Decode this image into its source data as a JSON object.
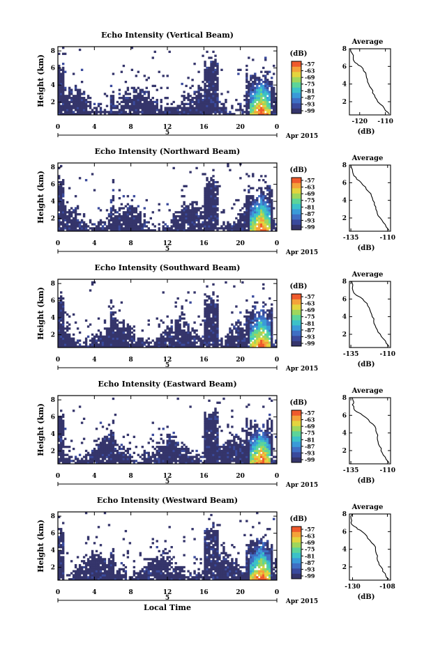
{
  "date_label": "Apr 2015",
  "day_label": "5",
  "xlabel": "Local Time",
  "colorbar": {
    "unit": "(dB)",
    "ticks": [
      "-57",
      "-63",
      "-69",
      "-75",
      "-81",
      "-87",
      "-93",
      "-99"
    ],
    "colors": [
      "#35356b",
      "#3a4a9c",
      "#3f6fc4",
      "#3a9ad8",
      "#3cc1c8",
      "#5cd49a",
      "#9fd65c",
      "#e3d43e",
      "#f4a23a",
      "#ef5a2c"
    ]
  },
  "chart_data": [
    {
      "type": "heatmap",
      "title": "Echo Intensity (Vertical Beam)",
      "ylabel": "Height (km)",
      "x_ticks": [
        "0",
        "4",
        "8",
        "12",
        "16",
        "20",
        "0"
      ],
      "y_ticks": [
        "2",
        "4",
        "6",
        "8"
      ],
      "xlim": [
        0,
        24
      ],
      "ylim": [
        0.5,
        8.5
      ],
      "profile": {
        "title": "Average",
        "xlabel": "(dB)",
        "x_ticks": [
          "-120",
          "-110"
        ],
        "y_ticks": [
          "2",
          "4",
          "6",
          "8"
        ],
        "xlim": [
          -124,
          -108
        ],
        "ylim": [
          0.5,
          8
        ],
        "points": [
          [
            -108.5,
            0.6
          ],
          [
            -110,
            1
          ],
          [
            -111,
            1.5
          ],
          [
            -113,
            2
          ],
          [
            -114,
            2.5
          ],
          [
            -115,
            3
          ],
          [
            -115.5,
            3.5
          ],
          [
            -116.5,
            4
          ],
          [
            -117,
            4.5
          ],
          [
            -117.5,
            5
          ],
          [
            -118.5,
            5.5
          ],
          [
            -119.5,
            6
          ],
          [
            -121,
            6.3
          ],
          [
            -122,
            6.5
          ],
          [
            -122.5,
            7
          ],
          [
            -123,
            7.5
          ],
          [
            -123.5,
            8
          ]
        ]
      }
    },
    {
      "type": "heatmap",
      "title": "Echo Intensity (Northward Beam)",
      "ylabel": "Height (km)",
      "x_ticks": [
        "0",
        "4",
        "8",
        "12",
        "16",
        "20",
        "0"
      ],
      "y_ticks": [
        "2",
        "4",
        "6",
        "8"
      ],
      "xlim": [
        0,
        24
      ],
      "ylim": [
        0.5,
        8.5
      ],
      "profile": {
        "title": "Average",
        "xlabel": "(dB)",
        "x_ticks": [
          "-135",
          "-110"
        ],
        "y_ticks": [
          "2",
          "4",
          "6",
          "8"
        ],
        "xlim": [
          -136,
          -108
        ],
        "ylim": [
          0.5,
          8
        ],
        "points": [
          [
            -109,
            0.6
          ],
          [
            -111,
            1
          ],
          [
            -113,
            1.5
          ],
          [
            -115,
            2
          ],
          [
            -117,
            2.5
          ],
          [
            -118,
            3
          ],
          [
            -119,
            3.5
          ],
          [
            -120,
            4
          ],
          [
            -121,
            4.5
          ],
          [
            -123,
            5
          ],
          [
            -125,
            5.5
          ],
          [
            -128,
            6
          ],
          [
            -131,
            6.4
          ],
          [
            -133,
            6.8
          ],
          [
            -134,
            7.5
          ],
          [
            -135,
            8
          ]
        ]
      }
    },
    {
      "type": "heatmap",
      "title": "Echo Intensity (Southward Beam)",
      "ylabel": "Height (km)",
      "x_ticks": [
        "0",
        "4",
        "8",
        "12",
        "16",
        "20",
        "0"
      ],
      "y_ticks": [
        "2",
        "4",
        "6",
        "8"
      ],
      "xlim": [
        0,
        24
      ],
      "ylim": [
        0.5,
        8.5
      ],
      "profile": {
        "title": "Average",
        "xlabel": "(dB)",
        "x_ticks": [
          "-135",
          "-110"
        ],
        "y_ticks": [
          "2",
          "4",
          "6",
          "8"
        ],
        "xlim": [
          -136,
          -108
        ],
        "ylim": [
          0.5,
          8
        ],
        "points": [
          [
            -109,
            0.6
          ],
          [
            -111,
            1
          ],
          [
            -113,
            1.5
          ],
          [
            -115,
            2
          ],
          [
            -117,
            2.5
          ],
          [
            -118.5,
            3
          ],
          [
            -119.5,
            3.5
          ],
          [
            -120.5,
            4
          ],
          [
            -121.5,
            4.5
          ],
          [
            -122.5,
            5
          ],
          [
            -124,
            5.5
          ],
          [
            -127,
            6
          ],
          [
            -131,
            6.4
          ],
          [
            -133,
            6.7
          ],
          [
            -134,
            7.2
          ],
          [
            -134.5,
            8
          ]
        ]
      }
    },
    {
      "type": "heatmap",
      "title": "Echo Intensity (Eastward Beam)",
      "ylabel": "Height (km)",
      "x_ticks": [
        "0",
        "4",
        "8",
        "12",
        "16",
        "20",
        "0"
      ],
      "y_ticks": [
        "2",
        "4",
        "6",
        "8"
      ],
      "xlim": [
        0,
        24
      ],
      "ylim": [
        0.5,
        8.5
      ],
      "profile": {
        "title": "Average",
        "xlabel": "(dB)",
        "x_ticks": [
          "-135",
          "-110"
        ],
        "y_ticks": [
          "2",
          "4",
          "6",
          "8"
        ],
        "xlim": [
          -136,
          -108
        ],
        "ylim": [
          0.5,
          8
        ],
        "points": [
          [
            -109,
            0.6
          ],
          [
            -111,
            1
          ],
          [
            -113,
            1.5
          ],
          [
            -114.5,
            2
          ],
          [
            -115.5,
            2.5
          ],
          [
            -116.5,
            3
          ],
          [
            -117,
            3.5
          ],
          [
            -117.5,
            4
          ],
          [
            -118,
            4.5
          ],
          [
            -120,
            5
          ],
          [
            -123,
            5.5
          ],
          [
            -127,
            6
          ],
          [
            -131,
            6.4
          ],
          [
            -133,
            6.8
          ],
          [
            -134,
            7.2
          ],
          [
            -133,
            7.5
          ],
          [
            -134,
            8
          ]
        ]
      }
    },
    {
      "type": "heatmap",
      "title": "Echo Intensity (Westward Beam)",
      "ylabel": "Height (km)",
      "x_ticks": [
        "0",
        "4",
        "8",
        "12",
        "16",
        "20",
        "0"
      ],
      "y_ticks": [
        "2",
        "4",
        "6",
        "8"
      ],
      "xlim": [
        0,
        24
      ],
      "ylim": [
        0.5,
        8.5
      ],
      "profile": {
        "title": "Average",
        "xlabel": "(dB)",
        "x_ticks": [
          "-130",
          "-108"
        ],
        "y_ticks": [
          "2",
          "4",
          "6",
          "8"
        ],
        "xlim": [
          -132,
          -106
        ],
        "ylim": [
          0.5,
          8
        ],
        "points": [
          [
            -107,
            0.6
          ],
          [
            -109,
            1
          ],
          [
            -111,
            1.5
          ],
          [
            -112,
            2
          ],
          [
            -113.5,
            2.5
          ],
          [
            -114.5,
            3
          ],
          [
            -115,
            3.5
          ],
          [
            -115.5,
            4
          ],
          [
            -116.5,
            4.5
          ],
          [
            -119,
            5
          ],
          [
            -121,
            5.5
          ],
          [
            -124,
            6
          ],
          [
            -127,
            6.3
          ],
          [
            -129,
            6.6
          ],
          [
            -131,
            7
          ],
          [
            -131,
            7.5
          ],
          [
            -130,
            8
          ]
        ]
      }
    }
  ]
}
